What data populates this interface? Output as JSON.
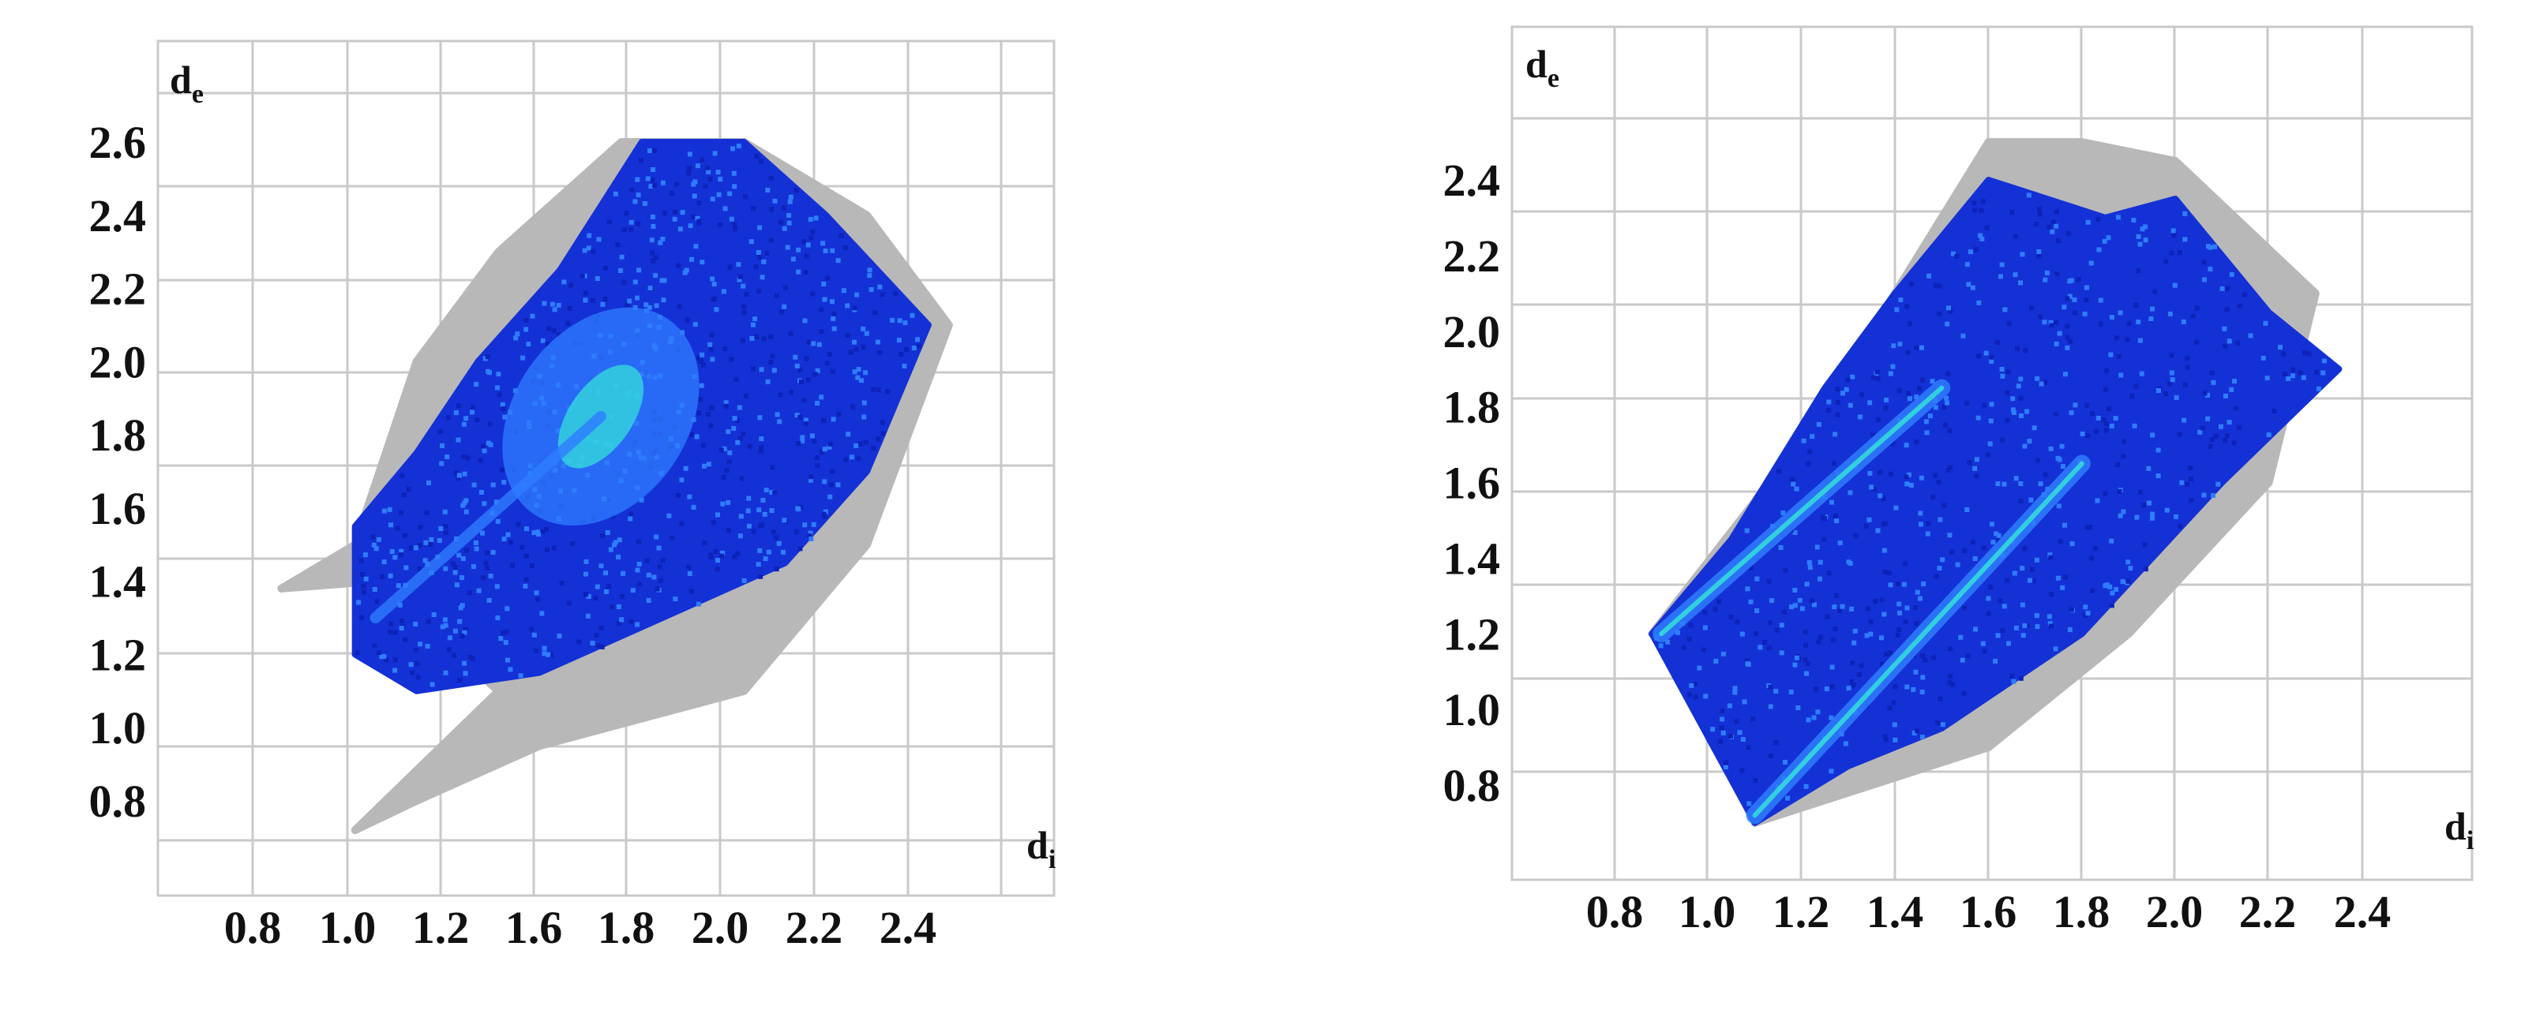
{
  "chart_data": [
    {
      "type": "scatter",
      "title": "",
      "xlabel": "d",
      "xlabel_sub": "i",
      "ylabel": "d",
      "ylabel_sub": "e",
      "x_ticks": [
        "0.8",
        "1.0",
        "1.2",
        "1.6",
        "1.8",
        "2.0",
        "2.2",
        "2.4"
      ],
      "y_ticks": [
        "0.8",
        "1.0",
        "1.2",
        "1.4",
        "1.6",
        "1.8",
        "2.0",
        "2.2",
        "2.4",
        "2.6"
      ],
      "xlim": [
        0.6,
        2.6
      ],
      "ylim": [
        0.6,
        2.8
      ],
      "grid": true,
      "colors": {
        "full_plot": "#b8b8b8",
        "highlight_low": "#1431d6",
        "highlight_mid": "#2f7dff",
        "highlight_high": "#35e8d8",
        "grid": "#c9c9c9"
      },
      "series": [
        {
          "role": "full fingerprint",
          "values": [
            [
              0.87,
              1.38
            ],
            [
              1.05,
              1.5
            ],
            [
              1.2,
              2.0
            ],
            [
              1.4,
              2.3
            ],
            [
              1.7,
              2.6
            ],
            [
              2.0,
              2.6
            ],
            [
              2.3,
              2.4
            ],
            [
              2.5,
              2.1
            ],
            [
              2.3,
              1.5
            ],
            [
              2.0,
              1.1
            ],
            [
              1.5,
              0.95
            ],
            [
              1.2,
              0.8
            ],
            [
              1.05,
              0.72
            ],
            [
              1.4,
              1.1
            ],
            [
              1.1,
              1.4
            ]
          ]
        },
        {
          "role": "highlighted contacts",
          "values": [
            [
              1.05,
              1.2
            ],
            [
              1.05,
              1.55
            ],
            [
              1.2,
              1.75
            ],
            [
              1.35,
              2.0
            ],
            [
              1.55,
              2.25
            ],
            [
              1.75,
              2.6
            ],
            [
              2.0,
              2.6
            ],
            [
              2.2,
              2.4
            ],
            [
              2.45,
              2.1
            ],
            [
              2.3,
              1.7
            ],
            [
              2.1,
              1.45
            ],
            [
              1.8,
              1.3
            ],
            [
              1.5,
              1.15
            ],
            [
              1.2,
              1.1
            ]
          ]
        }
      ],
      "density_peak": [
        1.65,
        1.85
      ]
    },
    {
      "type": "scatter",
      "title": "",
      "xlabel": "d",
      "xlabel_sub": "i",
      "ylabel": "d",
      "ylabel_sub": "e",
      "x_ticks": [
        "0.8",
        "1.0",
        "1.2",
        "1.4",
        "1.6",
        "1.8",
        "2.0",
        "2.2",
        "2.4"
      ],
      "y_ticks": [
        "0.8",
        "1.0",
        "1.2",
        "1.4",
        "1.6",
        "1.8",
        "2.0",
        "2.2",
        "2.4"
      ],
      "xlim": [
        0.6,
        2.6
      ],
      "ylim": [
        0.6,
        2.6
      ],
      "grid": true,
      "colors": {
        "full_plot": "#b8b8b8",
        "highlight_low": "#1431d6",
        "highlight_mid": "#2f7dff",
        "highlight_high": "#35e8d8",
        "grid": "#c9c9c9"
      },
      "series": [
        {
          "role": "full fingerprint",
          "values": [
            [
              0.88,
              1.2
            ],
            [
              1.1,
              1.55
            ],
            [
              1.3,
              1.9
            ],
            [
              1.5,
              2.3
            ],
            [
              1.6,
              2.5
            ],
            [
              1.8,
              2.5
            ],
            [
              2.0,
              2.45
            ],
            [
              2.3,
              2.1
            ],
            [
              2.2,
              1.6
            ],
            [
              1.9,
              1.2
            ],
            [
              1.6,
              0.9
            ],
            [
              1.1,
              0.7
            ],
            [
              1.3,
              1.1
            ],
            [
              1.1,
              1.15
            ]
          ]
        },
        {
          "role": "highlighted contacts",
          "values": [
            [
              0.88,
              1.2
            ],
            [
              1.05,
              1.45
            ],
            [
              1.25,
              1.85
            ],
            [
              1.4,
              2.1
            ],
            [
              1.6,
              2.4
            ],
            [
              1.85,
              2.3
            ],
            [
              2.0,
              2.35
            ],
            [
              2.2,
              2.05
            ],
            [
              2.35,
              1.9
            ],
            [
              2.1,
              1.6
            ],
            [
              1.8,
              1.2
            ],
            [
              1.5,
              0.95
            ],
            [
              1.3,
              0.85
            ],
            [
              1.1,
              0.7
            ]
          ]
        }
      ],
      "density_ridges": [
        {
          "from": [
            0.9,
            1.2
          ],
          "to": [
            1.5,
            1.85
          ]
        },
        {
          "from": [
            1.1,
            0.72
          ],
          "to": [
            1.8,
            1.65
          ]
        }
      ]
    }
  ]
}
